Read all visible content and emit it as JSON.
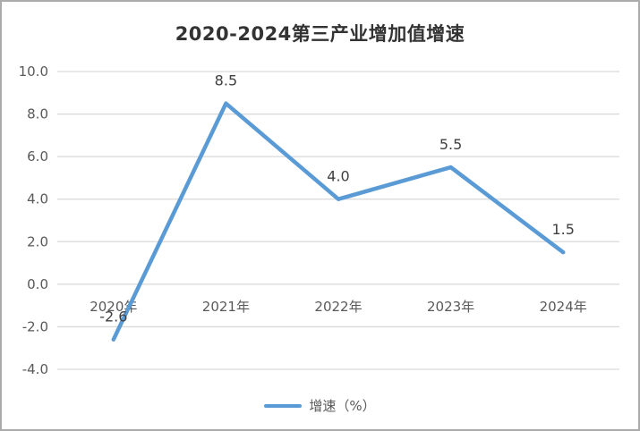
{
  "chart_data": {
    "type": "line",
    "title": "2020-2024第三产业增加值增速",
    "categories": [
      "2020年",
      "2021年",
      "2022年",
      "2023年",
      "2024年"
    ],
    "series": [
      {
        "name": "增速（%）",
        "values": [
          -2.6,
          8.5,
          4.0,
          5.5,
          1.5
        ],
        "color": "#5b9bd5"
      }
    ],
    "data_labels": [
      "-2.6",
      "8.5",
      "4.0",
      "5.5",
      "1.5"
    ],
    "y_axis": {
      "min": -4,
      "max": 10,
      "step": 2,
      "tick_labels": [
        "10.0",
        "8.0",
        "6.0",
        "4.0",
        "2.0",
        "0.0",
        "-2.0",
        "-4.0"
      ]
    },
    "x_axis_label_position": "below-zero-line",
    "grid": true,
    "legend_position": "bottom",
    "colors": {
      "gridline": "#d9d9d9",
      "axis_text": "#595959",
      "title_text": "#333333",
      "data_label_text": "#404040",
      "background": "#ffffff",
      "border": "#ababab"
    }
  }
}
